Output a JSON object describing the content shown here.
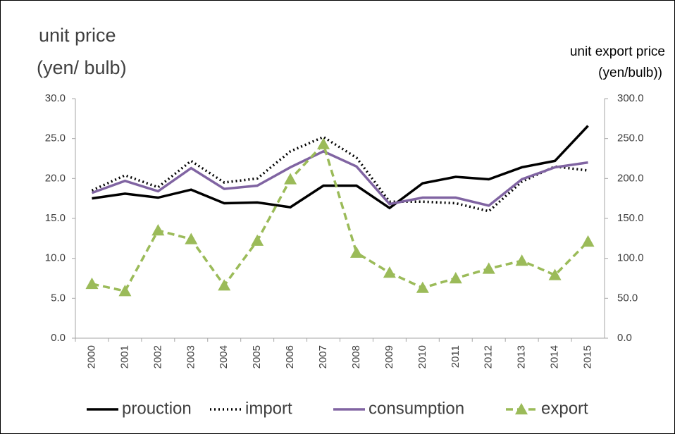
{
  "chart_data": {
    "type": "line",
    "ylabel": [
      "unit price",
      "(yen/ bulb)"
    ],
    "y2label": [
      "unit export price",
      "(yen/bulb))"
    ],
    "categories": [
      "2000",
      "2001",
      "2002",
      "2003",
      "2004",
      "2005",
      "2006",
      "2007",
      "2008",
      "2009",
      "2010",
      "2011",
      "2012",
      "2013",
      "2014",
      "2015"
    ],
    "series": [
      {
        "name": "prouction",
        "color": "#000000",
        "style": "solid",
        "values": [
          17.5,
          18.1,
          17.6,
          18.6,
          16.9,
          17.0,
          16.4,
          19.1,
          19.1,
          16.3,
          19.4,
          20.2,
          19.9,
          21.4,
          22.2,
          26.6
        ]
      },
      {
        "name": "import",
        "color": "#000000",
        "style": "dotted",
        "values": [
          18.5,
          20.4,
          18.9,
          22.2,
          19.5,
          20.0,
          23.4,
          25.2,
          22.6,
          17.1,
          17.1,
          16.9,
          15.9,
          19.6,
          21.5,
          21.0
        ]
      },
      {
        "name": "consumption",
        "color": "#8064a2",
        "style": "solid",
        "values": [
          18.2,
          19.7,
          18.4,
          21.3,
          18.7,
          19.1,
          21.4,
          23.4,
          21.5,
          16.8,
          17.6,
          17.6,
          16.6,
          19.9,
          21.4,
          22.0
        ]
      },
      {
        "name": "export",
        "color": "#9bbb59",
        "style": "dashed",
        "marker": "triangle",
        "axis": "y2",
        "values": [
          68,
          59,
          135,
          124,
          66,
          122,
          199,
          243,
          107,
          82,
          63,
          75,
          87,
          97,
          79,
          121
        ]
      }
    ],
    "ylim": [
      0,
      30
    ],
    "yticks": [
      {
        "value": 0,
        "label": "0.0"
      },
      {
        "value": 5,
        "label": "5.0"
      },
      {
        "value": 10,
        "label": "10.0"
      },
      {
        "value": 15,
        "label": "15.0"
      },
      {
        "value": 20,
        "label": "20.0"
      },
      {
        "value": 25,
        "label": "25.0"
      },
      {
        "value": 30,
        "label": "30.0"
      }
    ],
    "y2lim": [
      0,
      300
    ],
    "y2ticks": [
      {
        "value": 0,
        "label": "0.0"
      },
      {
        "value": 50,
        "label": "50.0"
      },
      {
        "value": 100,
        "label": "100.0"
      },
      {
        "value": 150,
        "label": "150.0"
      },
      {
        "value": 200,
        "label": "200.0"
      },
      {
        "value": 250,
        "label": "250.0"
      },
      {
        "value": 300,
        "label": "300.0"
      }
    ],
    "grid": false,
    "legend": "bottom"
  }
}
